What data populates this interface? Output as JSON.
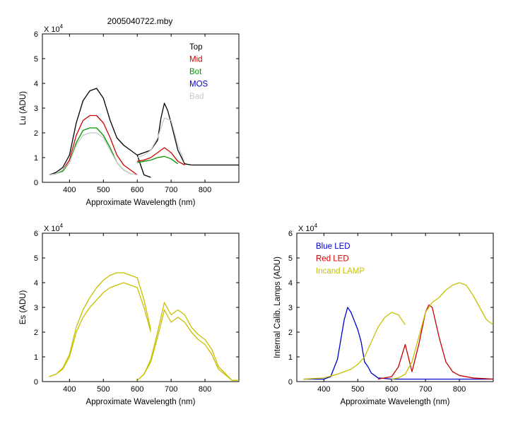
{
  "title": "2005040722.mby",
  "colors": {
    "top": "#000000",
    "mid": "#cc0000",
    "bot": "#009900",
    "mos": "#0000cc",
    "bad": "#c8c8c8",
    "es": "#c8c000",
    "blue_led": "#0000cc",
    "red_led": "#cc0000",
    "incand": "#c8c000"
  },
  "chart_data": [
    {
      "id": "lu",
      "type": "line",
      "title": "2005040722.mby",
      "xlabel": "Approximate Wavelength (nm)",
      "ylabel": "Lu (ADU)",
      "exponent_label": "X 10",
      "exponent": "4",
      "xlim": [
        320,
        900
      ],
      "ylim": [
        0,
        6
      ],
      "xticks": [
        "400",
        "500",
        "600",
        "700",
        "800"
      ],
      "yticks": [
        "0",
        "1",
        "2",
        "3",
        "4",
        "5",
        "6"
      ],
      "legend_position": "top-right",
      "legend": [
        {
          "label": "Top",
          "color": "#000000"
        },
        {
          "label": "Mid",
          "color": "#cc0000"
        },
        {
          "label": "Bot",
          "color": "#009900"
        },
        {
          "label": "MOS",
          "color": "#0000cc"
        },
        {
          "label": "Bad",
          "color": "#c8c8c8"
        }
      ],
      "series": [
        {
          "name": "Top",
          "color": "#000000",
          "x": [
            340,
            360,
            380,
            400,
            420,
            440,
            460,
            480,
            500,
            520,
            540,
            560,
            580,
            600,
            620,
            640
          ],
          "y": [
            0.3,
            0.4,
            0.6,
            1.1,
            2.4,
            3.3,
            3.7,
            3.8,
            3.4,
            2.5,
            1.8,
            1.5,
            1.3,
            1.1,
            0.3,
            0.2
          ]
        },
        {
          "name": "Top",
          "color": "#000000",
          "x": [
            600,
            620,
            640,
            660,
            670,
            680,
            690,
            700,
            720,
            740,
            760,
            800,
            850,
            900
          ],
          "y": [
            1.1,
            1.2,
            1.3,
            1.7,
            2.6,
            3.2,
            2.9,
            2.4,
            1.3,
            0.75,
            0.7,
            0.7,
            0.7,
            0.7
          ]
        },
        {
          "name": "Mid",
          "color": "#cc0000",
          "x": [
            340,
            360,
            380,
            400,
            420,
            440,
            460,
            480,
            500,
            520,
            540,
            560,
            580,
            600
          ],
          "y": [
            0.3,
            0.35,
            0.5,
            0.9,
            1.9,
            2.5,
            2.7,
            2.7,
            2.4,
            1.8,
            1.1,
            0.7,
            0.5,
            0.3
          ]
        },
        {
          "name": "Mid",
          "color": "#cc0000",
          "x": [
            600,
            620,
            640,
            660,
            680,
            700,
            720,
            740
          ],
          "y": [
            0.85,
            0.9,
            1.0,
            1.2,
            1.4,
            1.2,
            0.85,
            0.7
          ]
        },
        {
          "name": "Bot",
          "color": "#009900",
          "x": [
            340,
            360,
            380,
            400,
            420,
            440,
            460,
            480,
            500,
            520,
            540,
            560,
            580
          ],
          "y": [
            0.3,
            0.35,
            0.45,
            0.8,
            1.6,
            2.1,
            2.2,
            2.2,
            1.9,
            1.4,
            0.8,
            0.5,
            0.35
          ]
        },
        {
          "name": "Bot",
          "color": "#009900",
          "x": [
            600,
            620,
            640,
            660,
            680,
            700,
            720
          ],
          "y": [
            0.8,
            0.85,
            0.9,
            1.0,
            1.05,
            0.95,
            0.75
          ]
        },
        {
          "name": "Bad",
          "color": "#c8c8c8",
          "x": [
            340,
            360,
            380,
            400,
            420,
            440,
            460,
            480,
            500,
            520,
            540,
            560,
            580,
            600
          ],
          "y": [
            0.3,
            0.35,
            0.5,
            0.8,
            1.5,
            1.9,
            2.0,
            2.0,
            1.8,
            1.3,
            0.8,
            0.5,
            0.35,
            0.3
          ]
        },
        {
          "name": "Bad",
          "color": "#c8c8c8",
          "x": [
            600,
            620,
            640,
            660,
            680,
            700,
            720,
            740
          ],
          "y": [
            1.0,
            1.1,
            1.3,
            1.8,
            2.6,
            2.5,
            1.5,
            0.8
          ]
        }
      ]
    },
    {
      "id": "es",
      "type": "line",
      "xlabel": "Approximate Wavelength (nm)",
      "ylabel": "Es (ADU)",
      "exponent_label": "X 10",
      "exponent": "4",
      "xlim": [
        320,
        900
      ],
      "ylim": [
        0,
        6
      ],
      "xticks": [
        "400",
        "500",
        "600",
        "700",
        "800"
      ],
      "yticks": [
        "0",
        "1",
        "2",
        "3",
        "4",
        "5",
        "6"
      ],
      "series": [
        {
          "name": "Es",
          "color": "#c8c000",
          "x": [
            340,
            360,
            380,
            400,
            420,
            440,
            460,
            480,
            500,
            520,
            540,
            560,
            580,
            600,
            620,
            640
          ],
          "y": [
            0.2,
            0.3,
            0.5,
            1.0,
            2.0,
            2.6,
            3.0,
            3.3,
            3.6,
            3.8,
            3.9,
            4.0,
            3.9,
            3.8,
            3.0,
            2.0
          ]
        },
        {
          "name": "Es",
          "color": "#c8c000",
          "x": [
            340,
            360,
            380,
            400,
            420,
            440,
            460,
            480,
            500,
            520,
            540,
            560,
            580,
            600,
            620,
            640
          ],
          "y": [
            0.2,
            0.3,
            0.55,
            1.1,
            2.2,
            2.9,
            3.4,
            3.8,
            4.1,
            4.3,
            4.4,
            4.4,
            4.3,
            4.2,
            3.3,
            2.1
          ]
        },
        {
          "name": "Es",
          "color": "#c8c000",
          "x": [
            600,
            620,
            640,
            660,
            680,
            700,
            720,
            740,
            760,
            780,
            800,
            820,
            840,
            880,
            900
          ],
          "y": [
            0.05,
            0.3,
            0.8,
            1.8,
            2.9,
            2.4,
            2.6,
            2.4,
            2.0,
            1.7,
            1.5,
            1.1,
            0.5,
            0.05,
            0.05
          ]
        },
        {
          "name": "Es",
          "color": "#c8c000",
          "x": [
            600,
            620,
            640,
            660,
            680,
            700,
            720,
            740,
            760,
            780,
            800,
            820,
            840,
            880,
            900
          ],
          "y": [
            0.05,
            0.3,
            0.9,
            2.0,
            3.2,
            2.7,
            2.9,
            2.7,
            2.2,
            1.9,
            1.7,
            1.3,
            0.6,
            0.05,
            0.05
          ]
        }
      ]
    },
    {
      "id": "lamps",
      "type": "line",
      "xlabel": "Approximate Wavelength (nm)",
      "ylabel": "Internal Calib. Lamps (ADU)",
      "exponent_label": "X 10",
      "exponent": "4",
      "xlim": [
        320,
        900
      ],
      "ylim": [
        0,
        6
      ],
      "xticks": [
        "400",
        "500",
        "600",
        "700",
        "800"
      ],
      "yticks": [
        "0",
        "1",
        "2",
        "3",
        "4",
        "5",
        "6"
      ],
      "legend_position": "top-left",
      "legend": [
        {
          "label": "Blue LED",
          "color": "#0000cc"
        },
        {
          "label": "Red LED",
          "color": "#cc0000"
        },
        {
          "label": "Incand LAMP",
          "color": "#c8c000"
        }
      ],
      "series": [
        {
          "name": "Blue LED",
          "color": "#0000cc",
          "x": [
            340,
            400,
            420,
            440,
            460,
            470,
            480,
            500,
            510,
            520,
            530,
            540,
            560,
            600,
            700,
            800,
            900
          ],
          "y": [
            0.1,
            0.1,
            0.2,
            0.9,
            2.5,
            3.0,
            2.8,
            2.1,
            1.6,
            0.8,
            0.6,
            0.35,
            0.15,
            0.1,
            0.1,
            0.1,
            0.1
          ]
        },
        {
          "name": "Red LED",
          "color": "#cc0000",
          "x": [
            560,
            600,
            620,
            640,
            660,
            680,
            700,
            710,
            720,
            740,
            760,
            780,
            800,
            840,
            900
          ],
          "y": [
            0.1,
            0.2,
            0.6,
            1.5,
            0.4,
            1.5,
            2.8,
            3.1,
            3.0,
            1.8,
            0.8,
            0.4,
            0.25,
            0.15,
            0.1
          ]
        },
        {
          "name": "Incand LAMP",
          "color": "#c8c000",
          "x": [
            340,
            400,
            440,
            480,
            500,
            520,
            540,
            560,
            580,
            600,
            620,
            640
          ],
          "y": [
            0.1,
            0.15,
            0.3,
            0.5,
            0.7,
            1.0,
            1.6,
            2.2,
            2.6,
            2.8,
            2.7,
            2.3
          ]
        },
        {
          "name": "Incand LAMP",
          "color": "#c8c000",
          "x": [
            600,
            620,
            640,
            660,
            680,
            700,
            720,
            740,
            760,
            780,
            800,
            820,
            840,
            860,
            880,
            900
          ],
          "y": [
            0.1,
            0.15,
            0.3,
            0.8,
            1.8,
            2.8,
            3.2,
            3.4,
            3.7,
            3.9,
            4.0,
            3.9,
            3.5,
            3.0,
            2.5,
            2.3
          ]
        }
      ]
    }
  ]
}
